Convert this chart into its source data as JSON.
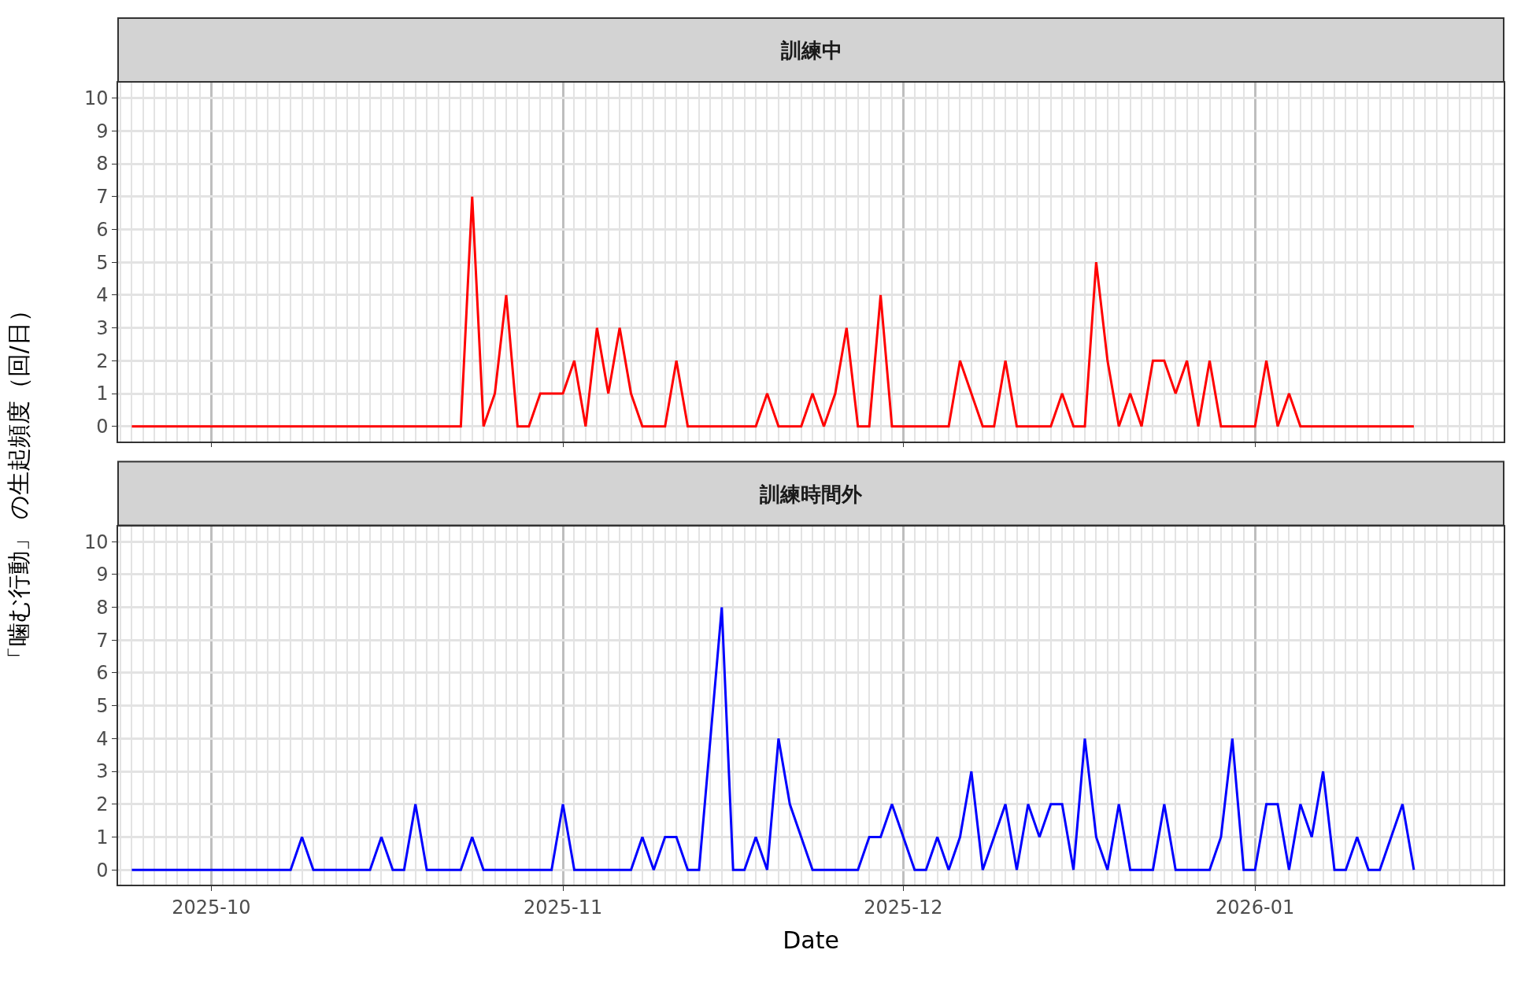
{
  "chart_data": [
    {
      "type": "line",
      "title": "訓練中",
      "ylabel": "「噛む行動」 の生起頻度（回/日）",
      "tick_labels": "y",
      "grid": true,
      "line_style": "solid",
      "xlim": [
        "2025-09-22T19:00",
        "2026-01-22T22:00"
      ],
      "ylim": [
        -0.45,
        10.47
      ],
      "yticks": [
        0,
        1,
        2,
        3,
        4,
        5,
        6,
        7,
        8,
        9,
        10
      ],
      "xticks": [
        {
          "value": "2025-10-01",
          "label": null
        },
        {
          "value": "2025-11-01",
          "label": null
        },
        {
          "value": "2025-12-01",
          "label": null
        },
        {
          "value": "2026-01-01",
          "label": null
        }
      ],
      "x": [
        "2025-09-24",
        "2025-09-25",
        "2025-09-26",
        "2025-09-27",
        "2025-09-28",
        "2025-09-29",
        "2025-09-30",
        "2025-10-01",
        "2025-10-02",
        "2025-10-03",
        "2025-10-04",
        "2025-10-05",
        "2025-10-06",
        "2025-10-07",
        "2025-10-08",
        "2025-10-09",
        "2025-10-10",
        "2025-10-11",
        "2025-10-12",
        "2025-10-13",
        "2025-10-14",
        "2025-10-15",
        "2025-10-16",
        "2025-10-17",
        "2025-10-18",
        "2025-10-19",
        "2025-10-20",
        "2025-10-21",
        "2025-10-22",
        "2025-10-23",
        "2025-10-24",
        "2025-10-25",
        "2025-10-26",
        "2025-10-27",
        "2025-10-28",
        "2025-10-29",
        "2025-10-30",
        "2025-10-31",
        "2025-11-01",
        "2025-11-02",
        "2025-11-03",
        "2025-11-04",
        "2025-11-05",
        "2025-11-06",
        "2025-11-07",
        "2025-11-08",
        "2025-11-09",
        "2025-11-10",
        "2025-11-11",
        "2025-11-12",
        "2025-11-13",
        "2025-11-14",
        "2025-11-15",
        "2025-11-16",
        "2025-11-17",
        "2025-11-18",
        "2025-11-19",
        "2025-11-20",
        "2025-11-21",
        "2025-11-22",
        "2025-11-23",
        "2025-11-24",
        "2025-11-25",
        "2025-11-26",
        "2025-11-27",
        "2025-11-28",
        "2025-11-29",
        "2025-11-30",
        "2025-12-01",
        "2025-12-02",
        "2025-12-03",
        "2025-12-04",
        "2025-12-05",
        "2025-12-06",
        "2025-12-07",
        "2025-12-08",
        "2025-12-09",
        "2025-12-10",
        "2025-12-11",
        "2025-12-12",
        "2025-12-13",
        "2025-12-14",
        "2025-12-15",
        "2025-12-16",
        "2025-12-17",
        "2025-12-18",
        "2025-12-19",
        "2025-12-20",
        "2025-12-21",
        "2025-12-22",
        "2025-12-23",
        "2025-12-24",
        "2025-12-25",
        "2025-12-26",
        "2025-12-27",
        "2025-12-28",
        "2025-12-29",
        "2025-12-30",
        "2025-12-31",
        "2026-01-01",
        "2026-01-02",
        "2026-01-03",
        "2026-01-04",
        "2026-01-05",
        "2026-01-06",
        "2026-01-07",
        "2026-01-08",
        "2026-01-09",
        "2026-01-10",
        "2026-01-11",
        "2026-01-12",
        "2026-01-13",
        "2026-01-14",
        "2026-01-15"
      ],
      "series": [
        {
          "color": "#ff0000",
          "values": [
            0,
            0,
            0,
            0,
            0,
            0,
            0,
            0,
            0,
            0,
            0,
            0,
            0,
            0,
            0,
            0,
            0,
            0,
            0,
            0,
            0,
            0,
            0,
            0,
            0,
            0,
            0,
            0,
            0,
            0,
            7,
            0,
            1,
            4,
            0,
            0,
            1,
            1,
            1,
            2,
            0,
            3,
            1,
            3,
            1,
            0,
            0,
            0,
            2,
            0,
            0,
            0,
            0,
            0,
            0,
            0,
            1,
            0,
            0,
            0,
            1,
            0,
            1,
            3,
            0,
            0,
            4,
            0,
            0,
            0,
            0,
            0,
            0,
            2,
            1,
            0,
            0,
            2,
            0,
            0,
            0,
            0,
            1,
            0,
            0,
            5,
            2,
            0,
            1,
            0,
            2,
            2,
            1,
            2,
            0,
            2,
            0,
            0,
            0,
            0,
            2,
            0,
            1,
            0,
            0,
            0,
            0,
            0,
            0,
            0,
            0,
            0,
            0,
            0
          ]
        }
      ]
    },
    {
      "type": "line",
      "title": "訓練時間外",
      "xlabel": "Date",
      "grid": true,
      "line_style": "solid",
      "xlim": [
        "2025-09-22T19:00",
        "2026-01-22T22:00"
      ],
      "ylim": [
        -0.45,
        10.47
      ],
      "yticks": [
        0,
        1,
        2,
        3,
        4,
        5,
        6,
        7,
        8,
        9,
        10
      ],
      "xticks": [
        {
          "value": "2025-10-01",
          "label": "2025-10"
        },
        {
          "value": "2025-11-01",
          "label": "2025-11"
        },
        {
          "value": "2025-12-01",
          "label": "2025-12"
        },
        {
          "value": "2026-01-01",
          "label": "2026-01"
        }
      ],
      "x": [
        "2025-09-24",
        "2025-09-25",
        "2025-09-26",
        "2025-09-27",
        "2025-09-28",
        "2025-09-29",
        "2025-09-30",
        "2025-10-01",
        "2025-10-02",
        "2025-10-03",
        "2025-10-04",
        "2025-10-05",
        "2025-10-06",
        "2025-10-07",
        "2025-10-08",
        "2025-10-09",
        "2025-10-10",
        "2025-10-11",
        "2025-10-12",
        "2025-10-13",
        "2025-10-14",
        "2025-10-15",
        "2025-10-16",
        "2025-10-17",
        "2025-10-18",
        "2025-10-19",
        "2025-10-20",
        "2025-10-21",
        "2025-10-22",
        "2025-10-23",
        "2025-10-24",
        "2025-10-25",
        "2025-10-26",
        "2025-10-27",
        "2025-10-28",
        "2025-10-29",
        "2025-10-30",
        "2025-10-31",
        "2025-11-01",
        "2025-11-02",
        "2025-11-03",
        "2025-11-04",
        "2025-11-05",
        "2025-11-06",
        "2025-11-07",
        "2025-11-08",
        "2025-11-09",
        "2025-11-10",
        "2025-11-11",
        "2025-11-12",
        "2025-11-13",
        "2025-11-14",
        "2025-11-15",
        "2025-11-16",
        "2025-11-17",
        "2025-11-18",
        "2025-11-19",
        "2025-11-20",
        "2025-11-21",
        "2025-11-22",
        "2025-11-23",
        "2025-11-24",
        "2025-11-25",
        "2025-11-26",
        "2025-11-27",
        "2025-11-28",
        "2025-11-29",
        "2025-11-30",
        "2025-12-01",
        "2025-12-02",
        "2025-12-03",
        "2025-12-04",
        "2025-12-05",
        "2025-12-06",
        "2025-12-07",
        "2025-12-08",
        "2025-12-09",
        "2025-12-10",
        "2025-12-11",
        "2025-12-12",
        "2025-12-13",
        "2025-12-14",
        "2025-12-15",
        "2025-12-16",
        "2025-12-17",
        "2025-12-18",
        "2025-12-19",
        "2025-12-20",
        "2025-12-21",
        "2025-12-22",
        "2025-12-23",
        "2025-12-24",
        "2025-12-25",
        "2025-12-26",
        "2025-12-27",
        "2025-12-28",
        "2025-12-29",
        "2025-12-30",
        "2025-12-31",
        "2026-01-01",
        "2026-01-02",
        "2026-01-03",
        "2026-01-04",
        "2026-01-05",
        "2026-01-06",
        "2026-01-07",
        "2026-01-08",
        "2026-01-09",
        "2026-01-10",
        "2026-01-11",
        "2026-01-12",
        "2026-01-13",
        "2026-01-14",
        "2026-01-15"
      ],
      "series": [
        {
          "color": "#0000ff",
          "values": [
            0,
            0,
            0,
            0,
            0,
            0,
            0,
            0,
            0,
            0,
            0,
            0,
            0,
            0,
            0,
            1,
            0,
            0,
            0,
            0,
            0,
            0,
            1,
            0,
            0,
            2,
            0,
            0,
            0,
            0,
            1,
            0,
            0,
            0,
            0,
            0,
            0,
            0,
            2,
            0,
            0,
            0,
            0,
            0,
            0,
            1,
            0,
            1,
            1,
            0,
            0,
            4,
            8,
            0,
            0,
            1,
            0,
            4,
            2,
            1,
            0,
            0,
            0,
            0,
            0,
            1,
            1,
            2,
            1,
            0,
            0,
            1,
            0,
            1,
            3,
            0,
            1,
            2,
            0,
            2,
            1,
            2,
            2,
            0,
            4,
            1,
            0,
            2,
            0,
            0,
            0,
            2,
            0,
            0,
            0,
            0,
            1,
            4,
            0,
            0,
            2,
            2,
            0,
            2,
            1,
            3,
            0,
            0,
            1,
            0,
            0,
            1,
            2,
            0
          ]
        }
      ]
    }
  ]
}
